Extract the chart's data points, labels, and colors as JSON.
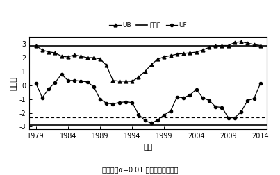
{
  "title": "",
  "xlabel": "年份",
  "ylabel": "统计値",
  "caption": "置信线为α=0.01 显著性水平临界値",
  "xlim": [
    1978,
    2015
  ],
  "ylim": [
    -3.2,
    3.5
  ],
  "yticks": [
    -3,
    -2,
    -1,
    0,
    1,
    2,
    3
  ],
  "xticks": [
    1979,
    1984,
    1989,
    1994,
    1999,
    2004,
    2009,
    2014
  ],
  "UB_constant": 2.88,
  "LB_constant": -2.88,
  "inner_line_dashed": -2.32,
  "UB_years": [
    1979,
    1980,
    1981,
    1982,
    1983,
    1984,
    1985,
    1986,
    1987,
    1988,
    1989,
    1990,
    1991,
    1992,
    1993,
    1994,
    1995,
    1996,
    1997,
    1998,
    1999,
    2000,
    2001,
    2002,
    2003,
    2004,
    2005,
    2006,
    2007,
    2008,
    2009,
    2010,
    2011,
    2012,
    2013,
    2014
  ],
  "UB_values": [
    2.88,
    2.55,
    2.42,
    2.35,
    2.1,
    2.05,
    2.2,
    2.1,
    2.0,
    2.0,
    1.9,
    1.45,
    0.35,
    0.3,
    0.3,
    0.28,
    0.6,
    1.0,
    1.5,
    1.9,
    2.05,
    2.15,
    2.25,
    2.3,
    2.35,
    2.4,
    2.55,
    2.75,
    2.85,
    2.88,
    2.88,
    3.1,
    3.15,
    3.05,
    2.95,
    2.88
  ],
  "UF_years": [
    1979,
    1980,
    1981,
    1982,
    1983,
    1984,
    1985,
    1986,
    1987,
    1988,
    1989,
    1990,
    1991,
    1992,
    1993,
    1994,
    1995,
    1996,
    1997,
    1998,
    1999,
    2000,
    2001,
    2002,
    2003,
    2004,
    2005,
    2006,
    2007,
    2008,
    2009,
    2010,
    2011,
    2012,
    2013,
    2014
  ],
  "UF_values": [
    0.15,
    -0.9,
    -0.25,
    0.2,
    0.8,
    0.35,
    0.35,
    0.3,
    0.25,
    -0.1,
    -1.0,
    -1.3,
    -1.35,
    -1.25,
    -1.2,
    -1.25,
    -2.1,
    -2.55,
    -2.75,
    -2.5,
    -2.15,
    -1.85,
    -0.85,
    -0.9,
    -0.7,
    -0.3,
    -0.9,
    -1.1,
    -1.55,
    -1.6,
    -2.35,
    -2.35,
    -1.9,
    -1.1,
    -0.95,
    0.15
  ]
}
